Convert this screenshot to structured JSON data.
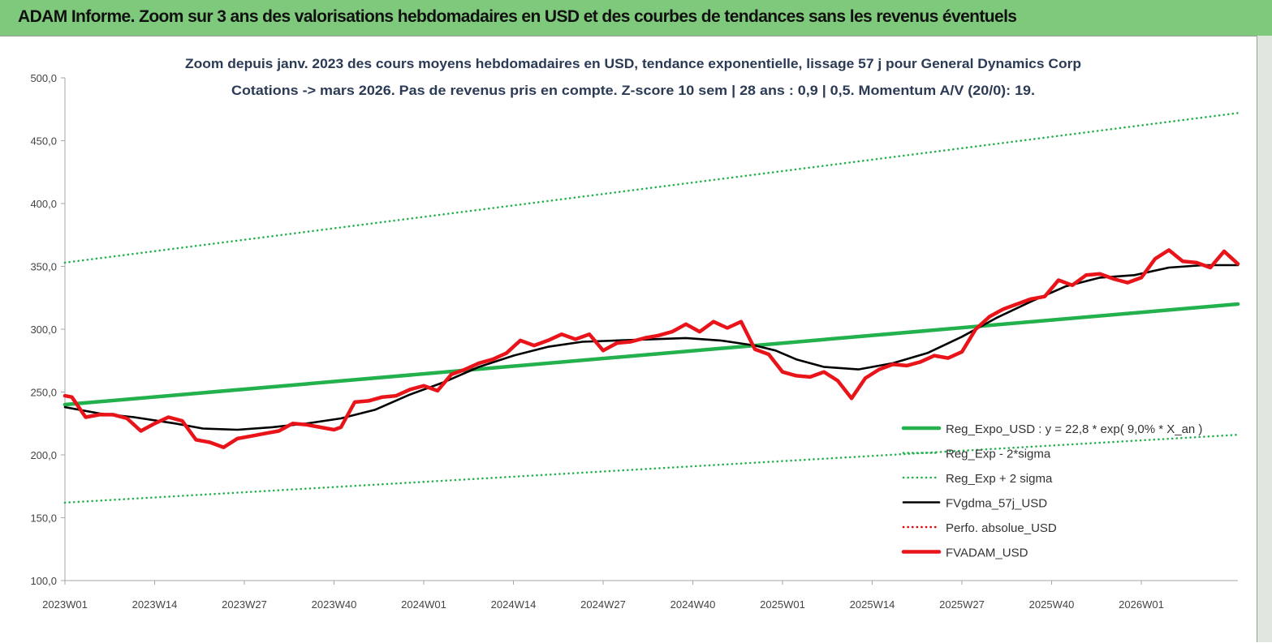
{
  "banner": {
    "title": "ADAM Informe. Zoom sur 3 ans des valorisations hebdomadaires en USD et des courbes de tendances sans les revenus éventuels"
  },
  "chart_data": {
    "type": "line",
    "title": "Zoom depuis janv. 2023 des cours moyens hebdomadaires en USD, tendance exponentielle, lissage 57 j pour General Dynamics Corp",
    "subtitle": "Cotations -> mars 2026. Pas de revenus pris en compte. Z-score 10 sem | 28 ans : 0,9 | 0,5. Momentum A/V (20/0): 19.",
    "xlabel": "",
    "ylabel": "",
    "ylim": [
      100,
      500
    ],
    "yticks": [
      "100,0",
      "150,0",
      "200,0",
      "250,0",
      "300,0",
      "350,0",
      "400,0",
      "450,0",
      "500,0"
    ],
    "xlim": [
      0,
      170
    ],
    "xticks": [
      {
        "label": "2023W01",
        "week": 0
      },
      {
        "label": "2023W14",
        "week": 13
      },
      {
        "label": "2023W27",
        "week": 26
      },
      {
        "label": "2023W40",
        "week": 39
      },
      {
        "label": "2024W01",
        "week": 52
      },
      {
        "label": "2024W14",
        "week": 65
      },
      {
        "label": "2024W27",
        "week": 78
      },
      {
        "label": "2024W40",
        "week": 91
      },
      {
        "label": "2025W01",
        "week": 104
      },
      {
        "label": "2025W14",
        "week": 117
      },
      {
        "label": "2025W27",
        "week": 130
      },
      {
        "label": "2025W40",
        "week": 143
      },
      {
        "label": "2026W01",
        "week": 156
      }
    ],
    "grid": false,
    "legend_position": "bottom-right",
    "series": [
      {
        "name": "Reg_Expo_USD : y = 22,8 * exp( 9,0% *  X_an )",
        "color": "#22b14c",
        "style": "thick",
        "x": [
          0,
          170
        ],
        "values": [
          240,
          320
        ]
      },
      {
        "name": "Reg_Exp - 2*sigma",
        "color": "#22b14c",
        "style": "dotted",
        "x": [
          0,
          170
        ],
        "values": [
          162,
          216
        ]
      },
      {
        "name": "Reg_Exp + 2 sigma",
        "color": "#22b14c",
        "style": "dotted",
        "x": [
          0,
          170
        ],
        "values": [
          353,
          472
        ]
      },
      {
        "name": "FVgdma_57j_USD",
        "color": "#000000",
        "style": "solid",
        "x": [
          0,
          5,
          10,
          16,
          20,
          25,
          30,
          35,
          40,
          45,
          50,
          55,
          60,
          65,
          70,
          75,
          80,
          85,
          90,
          95,
          100,
          103,
          106,
          110,
          115,
          120,
          125,
          130,
          135,
          140,
          145,
          150,
          155,
          160,
          165,
          170
        ],
        "values": [
          238,
          233,
          230,
          225,
          221,
          220,
          222,
          225,
          229,
          236,
          248,
          258,
          270,
          279,
          286,
          290,
          291,
          292,
          293,
          291,
          287,
          283,
          276,
          270,
          268,
          273,
          281,
          294,
          309,
          322,
          334,
          341,
          343,
          349,
          351,
          351
        ]
      },
      {
        "name": "Perfo. absolue_USD",
        "color": "#e00000",
        "style": "dotted",
        "x": [],
        "values": []
      },
      {
        "name": "FVADAM_USD",
        "color": "#e8141a",
        "style": "thick",
        "x": [
          0,
          1,
          3,
          5,
          7,
          9,
          11,
          13,
          15,
          17,
          19,
          21,
          23,
          25,
          27,
          29,
          31,
          33,
          35,
          37,
          39,
          40,
          42,
          44,
          46,
          48,
          50,
          52,
          54,
          56,
          58,
          60,
          62,
          64,
          66,
          68,
          70,
          72,
          74,
          76,
          78,
          80,
          82,
          84,
          86,
          88,
          90,
          92,
          94,
          96,
          98,
          100,
          102,
          104,
          106,
          108,
          110,
          112,
          114,
          116,
          118,
          120,
          122,
          124,
          126,
          128,
          130,
          132,
          134,
          136,
          138,
          140,
          142,
          144,
          146,
          148,
          150,
          152,
          154,
          156,
          158,
          160,
          162,
          164,
          166,
          168,
          170
        ],
        "values": [
          247,
          246,
          230,
          232,
          232,
          229,
          219,
          225,
          230,
          227,
          212,
          210,
          206,
          213,
          215,
          217,
          219,
          225,
          224,
          222,
          220,
          222,
          242,
          243,
          246,
          247,
          252,
          255,
          251,
          264,
          268,
          273,
          276,
          281,
          291,
          287,
          291,
          296,
          292,
          296,
          283,
          289,
          290,
          293,
          295,
          298,
          304,
          298,
          306,
          301,
          306,
          284,
          280,
          266,
          263,
          262,
          266,
          259,
          245,
          261,
          268,
          272,
          271,
          274,
          279,
          277,
          282,
          300,
          310,
          316,
          320,
          324,
          326,
          339,
          335,
          343,
          344,
          340,
          337,
          341,
          356,
          363,
          354,
          353,
          349,
          362,
          352
        ]
      }
    ]
  }
}
